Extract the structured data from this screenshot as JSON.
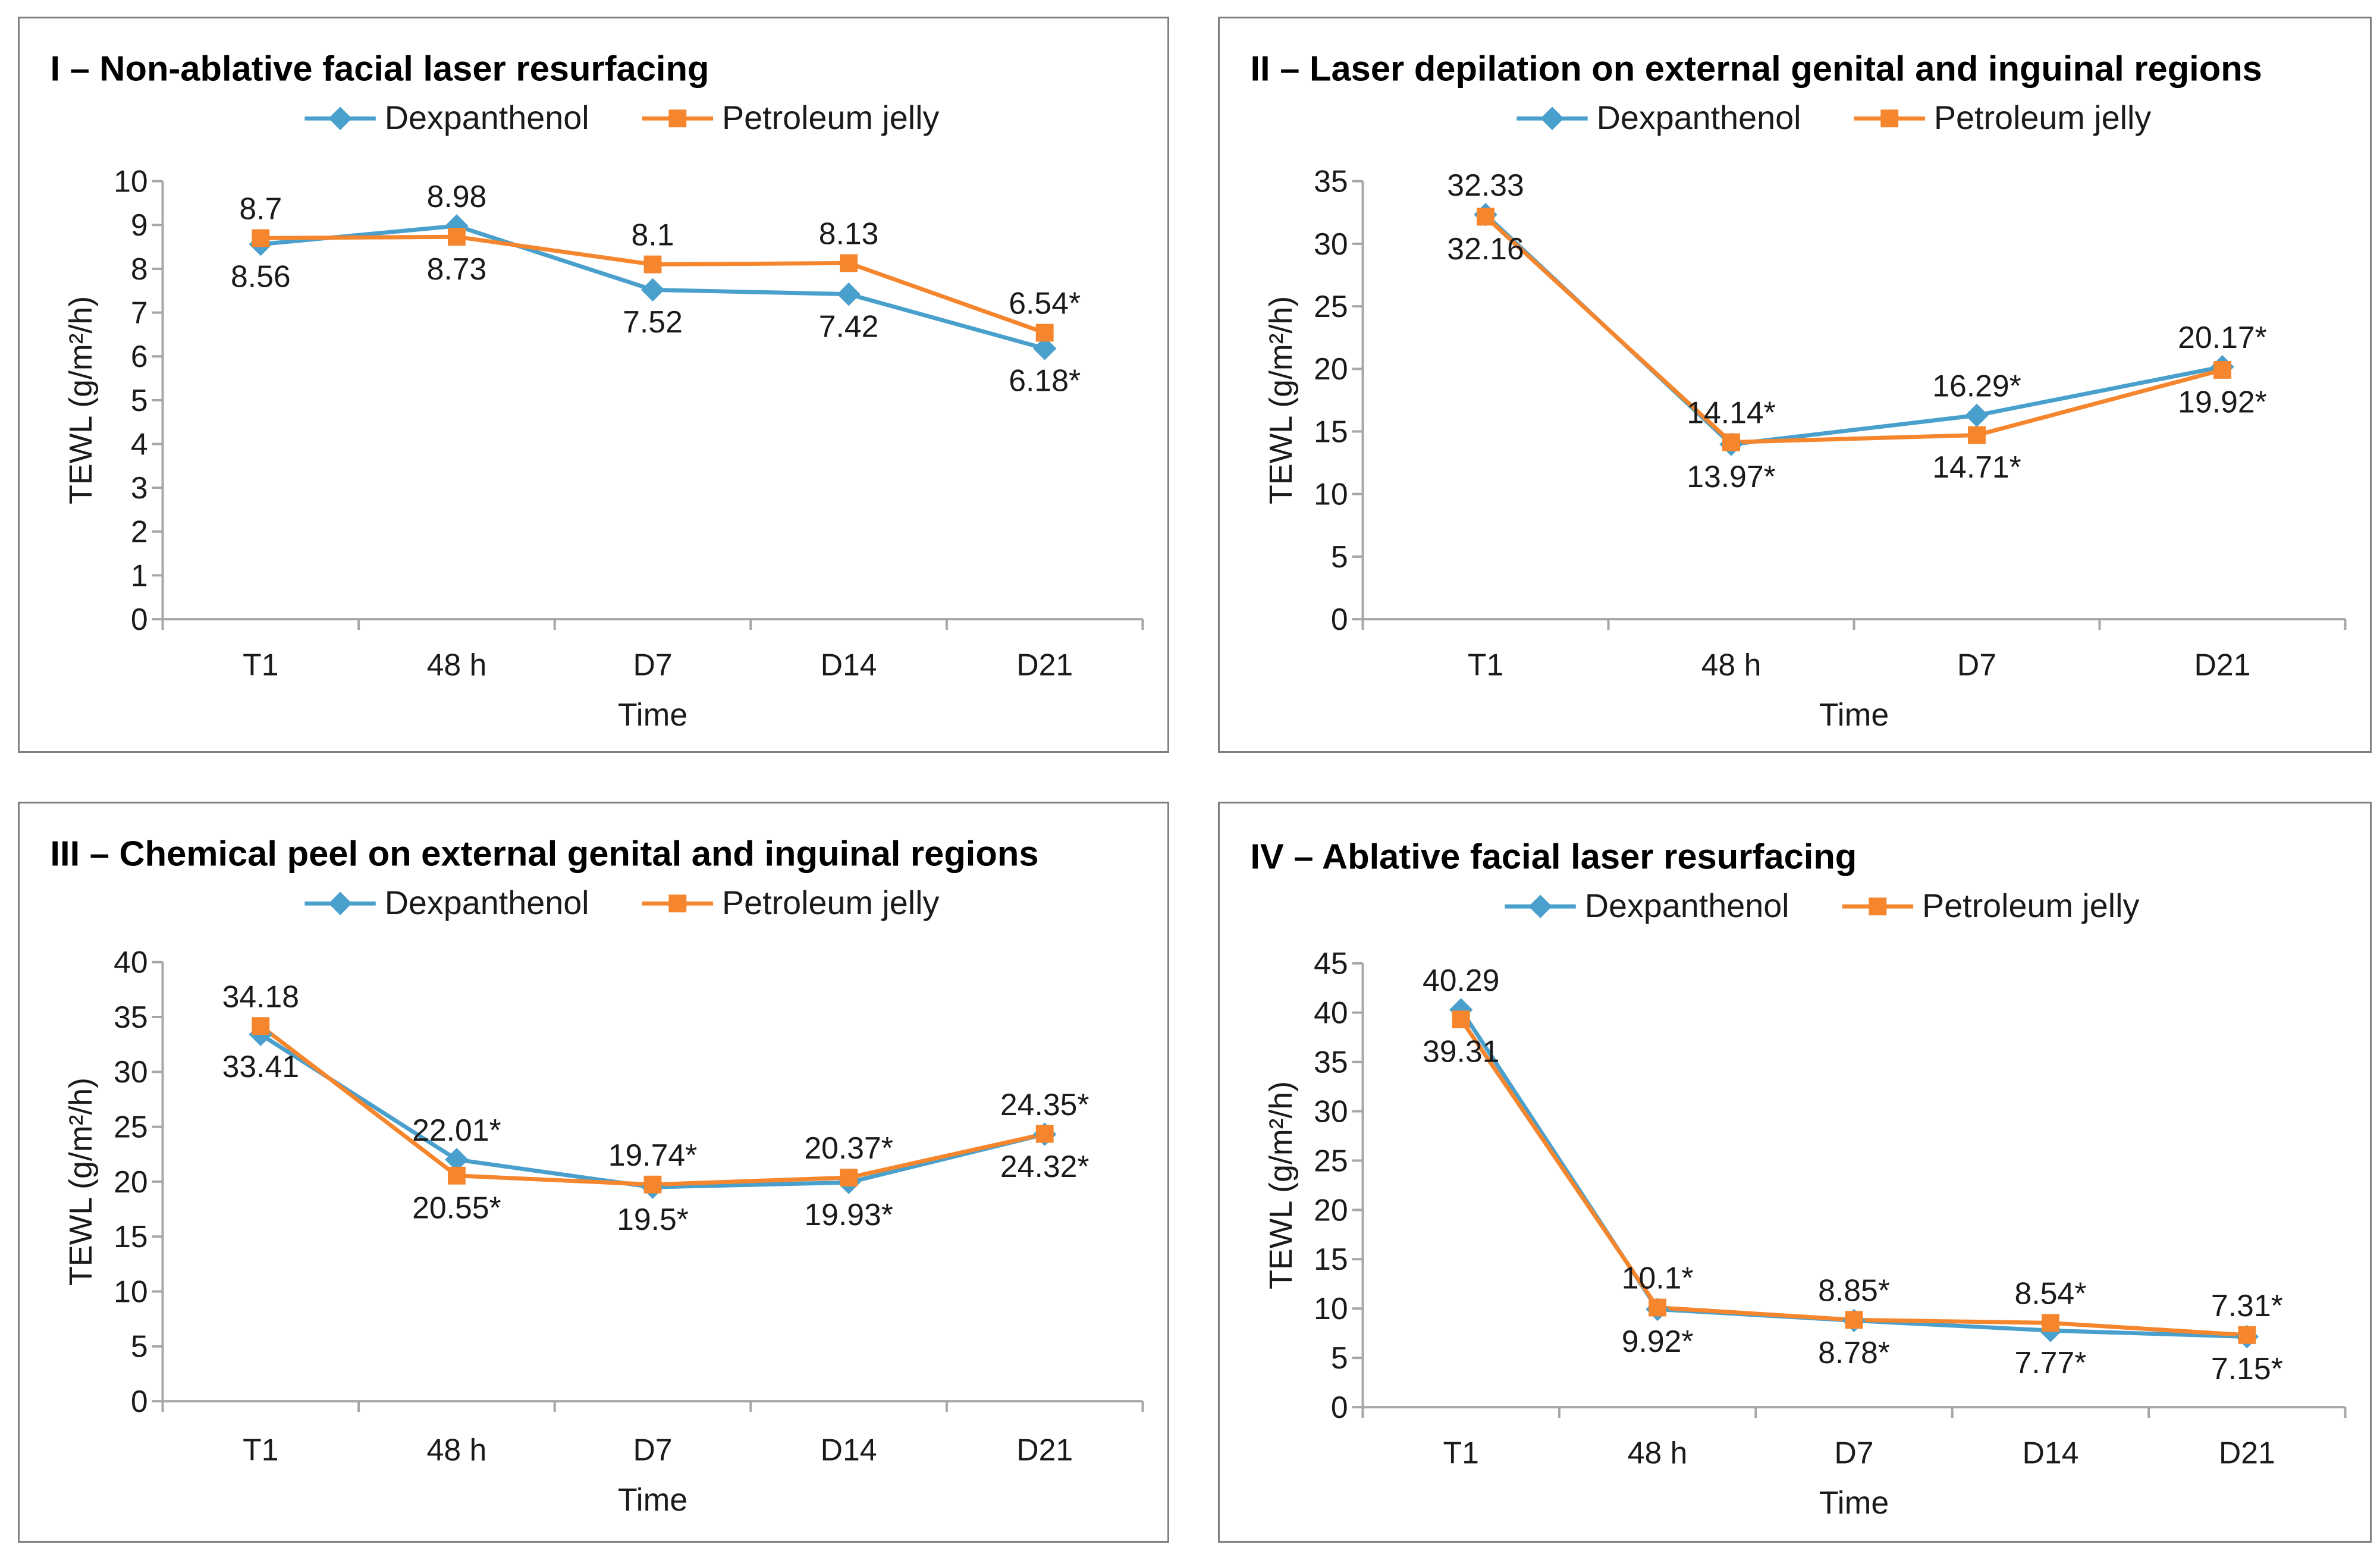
{
  "colors": {
    "dex": "#4aa0cc",
    "pet": "#f5862d",
    "axis": "#a6a6a6",
    "border": "#7f7f7f"
  },
  "chart_data": [
    {
      "type": "line",
      "title": "I – Non-ablative facial laser resurfacing",
      "xlabel": "Time",
      "ylabel": "TEWL (g/m²/h)",
      "ylim": [
        0,
        10
      ],
      "yticks": [
        "0",
        "1",
        "2",
        "3",
        "4",
        "5",
        "6",
        "7",
        "8",
        "9",
        "10"
      ],
      "categories": [
        "T1",
        "48 h",
        "D7",
        "D14",
        "D21"
      ],
      "series": [
        {
          "name": "Dexpanthenol",
          "values": [
            8.56,
            8.98,
            7.52,
            7.42,
            6.18
          ],
          "labels": [
            "8.56",
            "8.98",
            "7.52",
            "7.42",
            "6.18*"
          ],
          "label_pos": [
            "below",
            "above",
            "below",
            "below",
            "below"
          ]
        },
        {
          "name": "Petroleum jelly",
          "values": [
            8.7,
            8.73,
            8.1,
            8.13,
            6.54
          ],
          "labels": [
            "8.7",
            "8.73",
            "8.1",
            "8.13",
            "6.54*"
          ],
          "label_pos": [
            "above",
            "below",
            "above",
            "above",
            "above"
          ]
        }
      ]
    },
    {
      "type": "line",
      "title": "II – Laser depilation on external genital and inguinal regions",
      "xlabel": "Time",
      "ylabel": "TEWL (g/m²/h)",
      "ylim": [
        0,
        35
      ],
      "yticks": [
        "0",
        "5",
        "10",
        "15",
        "20",
        "25",
        "30",
        "35"
      ],
      "categories": [
        "T1",
        "48 h",
        "D7",
        "D21"
      ],
      "series": [
        {
          "name": "Dexpanthenol",
          "values": [
            32.33,
            13.97,
            16.29,
            20.17
          ],
          "labels": [
            "32.33",
            "13.97*",
            "16.29*",
            "20.17*"
          ],
          "label_pos": [
            "above",
            "below",
            "above",
            "above"
          ]
        },
        {
          "name": "Petroleum jelly",
          "values": [
            32.16,
            14.14,
            14.71,
            19.92
          ],
          "labels": [
            "32.16",
            "14.14*",
            "14.71*",
            "19.92*"
          ],
          "label_pos": [
            "below",
            "above",
            "below",
            "below"
          ]
        }
      ]
    },
    {
      "type": "line",
      "title": "III – Chemical peel on external genital and inguinal regions",
      "xlabel": "Time",
      "ylabel": "TEWL (g/m²/h)",
      "ylim": [
        0,
        40
      ],
      "yticks": [
        "0",
        "5",
        "10",
        "15",
        "20",
        "25",
        "30",
        "35",
        "40"
      ],
      "categories": [
        "T1",
        "48 h",
        "D7",
        "D14",
        "D21"
      ],
      "series": [
        {
          "name": "Dexpanthenol",
          "values": [
            33.41,
            22.01,
            19.5,
            19.93,
            24.32
          ],
          "labels": [
            "33.41",
            "22.01*",
            "19.5*",
            "19.93*",
            "24.32*"
          ],
          "label_pos": [
            "below",
            "above",
            "below",
            "below",
            "below"
          ]
        },
        {
          "name": "Petroleum jelly",
          "values": [
            34.18,
            20.55,
            19.74,
            20.37,
            24.35
          ],
          "labels": [
            "34.18",
            "20.55*",
            "19.74*",
            "20.37*",
            "24.35*"
          ],
          "label_pos": [
            "above",
            "below",
            "above",
            "above",
            "above"
          ]
        }
      ]
    },
    {
      "type": "line",
      "title": "IV – Ablative facial laser resurfacing",
      "xlabel": "Time",
      "ylabel": "TEWL (g/m²/h)",
      "ylim": [
        0,
        45
      ],
      "yticks": [
        "0",
        "5",
        "10",
        "15",
        "20",
        "25",
        "30",
        "35",
        "40",
        "45"
      ],
      "categories": [
        "T1",
        "48 h",
        "D7",
        "D14",
        "D21"
      ],
      "series": [
        {
          "name": "Dexpanthenol",
          "values": [
            40.29,
            9.92,
            8.78,
            7.77,
            7.15
          ],
          "labels": [
            "40.29",
            "9.92*",
            "8.78*",
            "7.77*",
            "7.15*"
          ],
          "label_pos": [
            "above",
            "below",
            "below",
            "below",
            "below"
          ]
        },
        {
          "name": "Petroleum jelly",
          "values": [
            39.31,
            10.1,
            8.85,
            8.54,
            7.31
          ],
          "labels": [
            "39.31",
            "10.1*",
            "8.85*",
            "8.54*",
            "7.31*"
          ],
          "label_pos": [
            "below",
            "above",
            "above",
            "above",
            "above"
          ]
        }
      ]
    }
  ]
}
